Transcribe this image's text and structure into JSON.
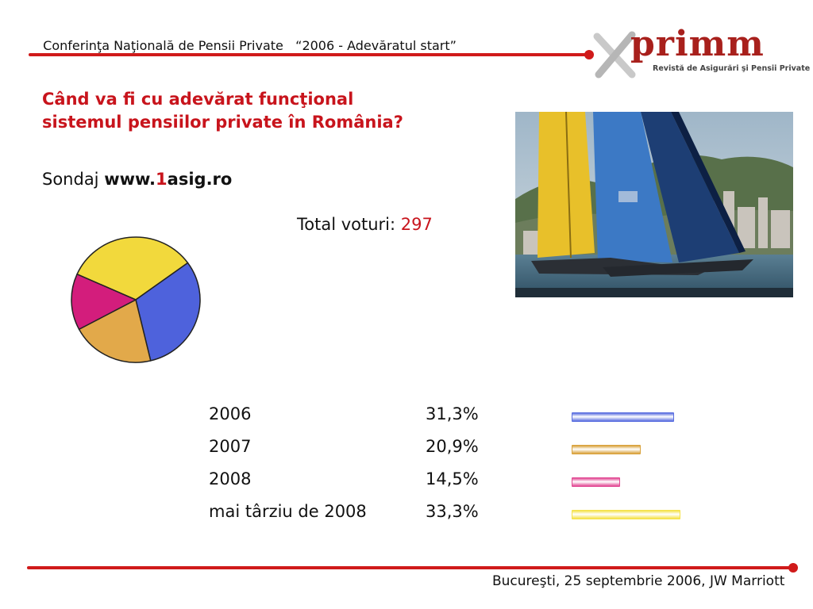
{
  "header": {
    "conference": "Conferinţa Naţională de Pensii Private",
    "slogan": "“2006 - Adevăratul start”"
  },
  "logo": {
    "word": "primm",
    "tagline": "Revistă de Asigurări şi Pensii Private"
  },
  "title": {
    "line1": "Când va fi cu adevărat funcţional",
    "line2": "sistemul pensiilor private în România?"
  },
  "survey": {
    "prefix": "Sondaj ",
    "site_a": "www.",
    "site_b": "1",
    "site_c": "asig.ro"
  },
  "total": {
    "label": "Total voturi: ",
    "value": "297"
  },
  "chart_data": {
    "type": "pie",
    "title": "",
    "total_votes": 297,
    "categories": [
      "2006",
      "2007",
      "2008",
      "mai târziu de 2008"
    ],
    "values": [
      31.3,
      20.9,
      14.5,
      33.3
    ],
    "value_labels": [
      "31,3%",
      "20,9%",
      "14,5%",
      "33,3%"
    ],
    "colors": [
      "#4e62dc",
      "#e2a94a",
      "#d31d7c",
      "#f2d93c"
    ],
    "bar_colors": [
      "#5b6fe0",
      "#d9a23c",
      "#e24a94",
      "#f5e24a"
    ]
  },
  "footer": {
    "text": "Bucureşti, 25 septembrie 2006, JW Marriott"
  }
}
